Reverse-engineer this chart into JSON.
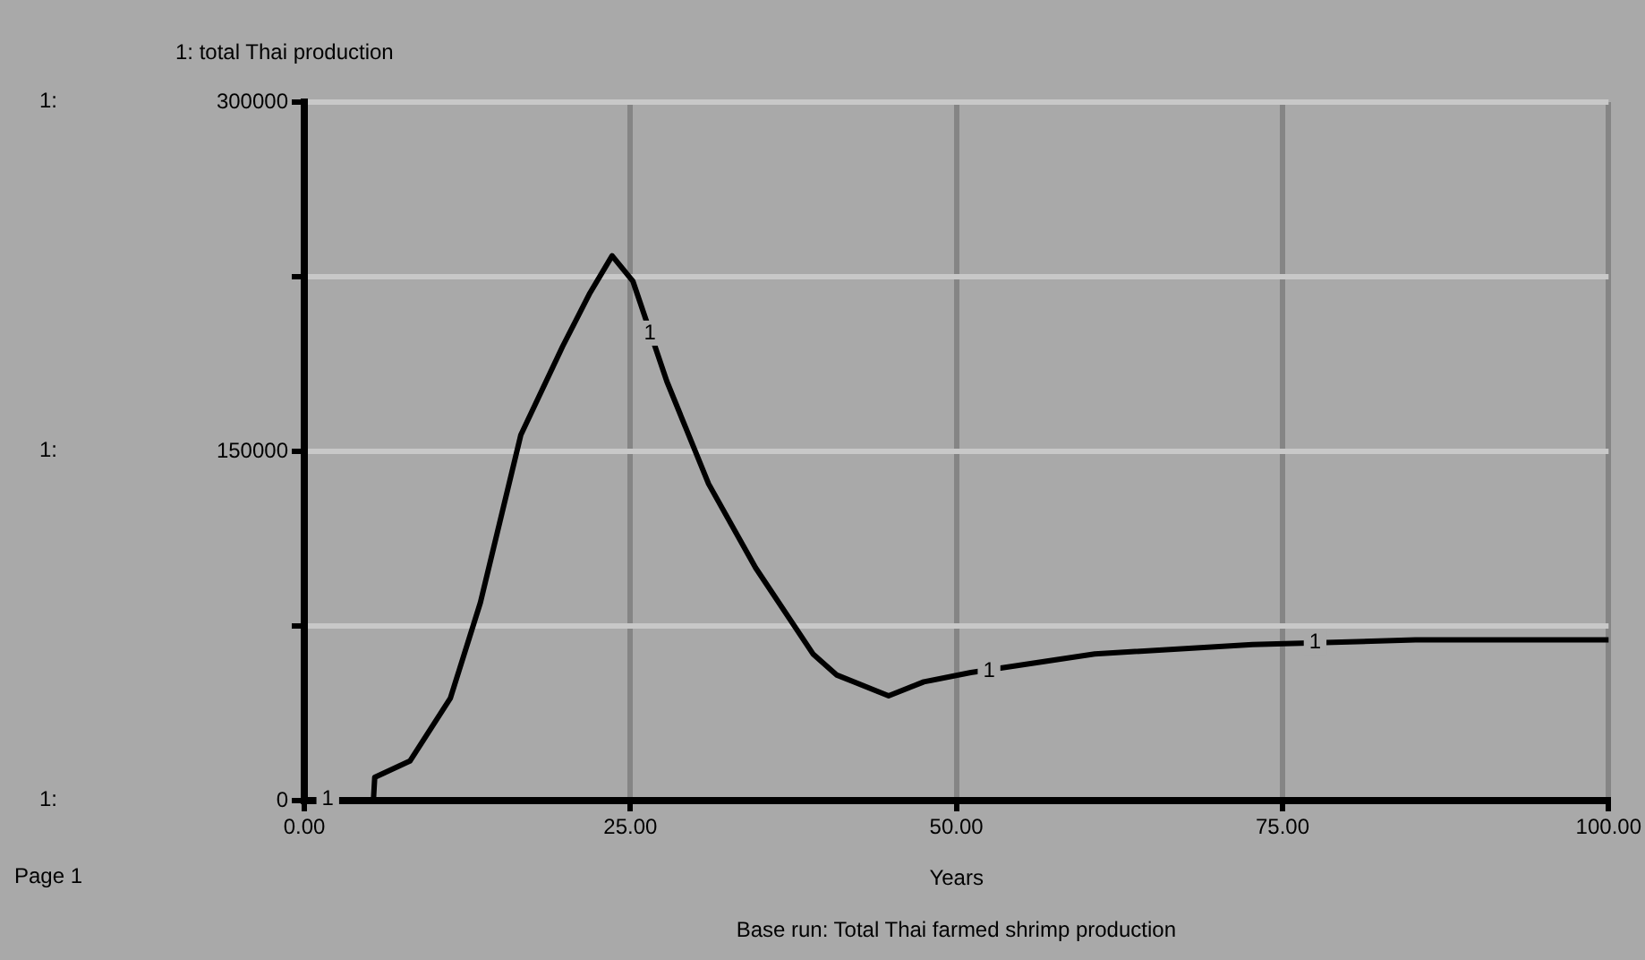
{
  "chart_data": {
    "type": "line",
    "title": "Base run: Total Thai farmed shrimp production",
    "xlabel": "Years",
    "x": [
      3.2,
      5.3,
      5.4,
      8.1,
      11.2,
      13.5,
      16.6,
      19.8,
      21.9,
      23.6,
      25.2,
      27.8,
      31,
      34.6,
      39,
      40.8,
      44.8,
      47.5,
      51.1,
      60.6,
      72.7,
      85.2,
      100
    ],
    "series": [
      {
        "name": "1: total Thai production",
        "color": "#000000",
        "values": [
          0,
          0,
          10000,
          17000,
          44000,
          85000,
          157000,
          195000,
          218000,
          234000,
          223000,
          180000,
          136000,
          100000,
          63000,
          54000,
          45000,
          51000,
          55000,
          63000,
          67000,
          69000,
          69000
        ]
      }
    ],
    "xlim": [
      0,
      100
    ],
    "xticks": [
      {
        "value": 0,
        "label": "0.00"
      },
      {
        "value": 25,
        "label": "25.00"
      },
      {
        "value": 50,
        "label": "50.00"
      },
      {
        "value": 75,
        "label": "75.00"
      },
      {
        "value": 100,
        "label": "100.00"
      }
    ],
    "ylim": [
      0,
      300000
    ],
    "yticks": [
      0,
      {
        "value": 75000,
        "label": null
      },
      150000,
      {
        "value": 225000,
        "label": null
      },
      300000
    ],
    "grid": true,
    "legend": "top left",
    "marker": "none",
    "line_style": "solid",
    "annotations": [
      {
        "text": "1",
        "x": 1.8,
        "y": 0
      },
      {
        "text": "1",
        "x": 26.5,
        "y": 200000
      },
      {
        "text": "1",
        "x": 52.5,
        "y": 55000
      },
      {
        "text": "1",
        "x": 77.5,
        "y": 67000
      },
      "1:",
      "1:",
      "1:",
      "Page 1"
    ]
  }
}
